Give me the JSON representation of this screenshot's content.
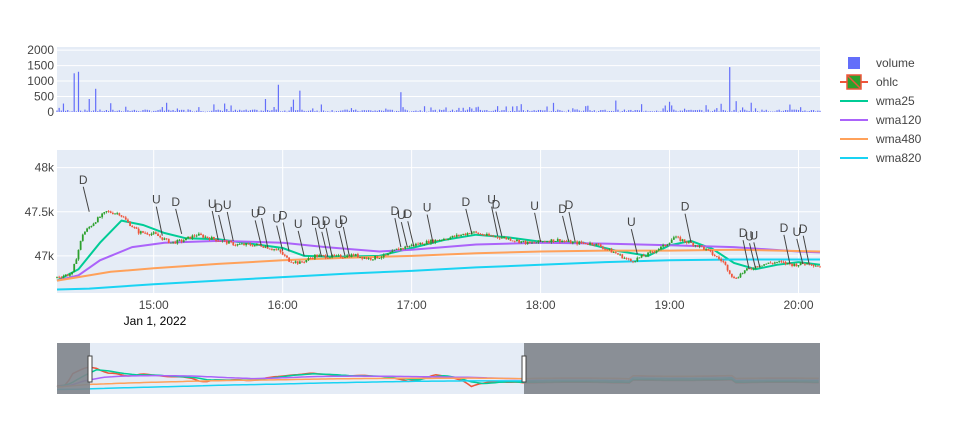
{
  "colors": {
    "plot_bg": "#e5ecf6",
    "grid": "#ffffff",
    "axis_text": "#444444",
    "volume": "#636efa",
    "up": "#2ca02c",
    "down": "#ef553b",
    "wma25": "#00cc96",
    "wma120": "#ab63fa",
    "wma480": "#ffa15a",
    "wma820": "#19d3f3",
    "slider_mask": "#7f858c"
  },
  "legend": [
    {
      "key": "volume",
      "label": "volume"
    },
    {
      "key": "ohlc",
      "label": "ohlc"
    },
    {
      "key": "wma25",
      "label": "wma25"
    },
    {
      "key": "wma120",
      "label": "wma120"
    },
    {
      "key": "wma480",
      "label": "wma480"
    },
    {
      "key": "wma820",
      "label": "wma820"
    }
  ],
  "chart_data": [
    {
      "type": "bar",
      "name": "volume",
      "x_range": [
        "14:15",
        "20:10"
      ],
      "ylim": [
        0,
        2100
      ],
      "y_ticks": [
        0,
        500,
        1000,
        1500,
        2000
      ],
      "y_tick_labels": [
        "0",
        "500",
        "1000",
        "1500",
        "2000"
      ],
      "spikes": [
        {
          "time": "14:23",
          "value": 1250
        },
        {
          "time": "14:25",
          "value": 1300
        },
        {
          "time": "14:30",
          "value": 420
        },
        {
          "time": "14:33",
          "value": 750
        },
        {
          "time": "15:52",
          "value": 420
        },
        {
          "time": "15:58",
          "value": 880
        },
        {
          "time": "16:05",
          "value": 400
        },
        {
          "time": "16:08",
          "value": 690
        },
        {
          "time": "16:55",
          "value": 640
        },
        {
          "time": "18:35",
          "value": 370
        },
        {
          "time": "19:00",
          "value": 330
        },
        {
          "time": "19:28",
          "value": 1450
        },
        {
          "time": "19:31",
          "value": 350
        },
        {
          "time": "19:38",
          "value": 300
        }
      ]
    },
    {
      "type": "candlestick",
      "name": "ohlc",
      "x_range": [
        "14:15",
        "20:10"
      ],
      "x_ticks": [
        "15:00",
        "16:00",
        "17:00",
        "18:00",
        "19:00",
        "20:00"
      ],
      "x_tick_labels": [
        "15:00",
        "16:00",
        "17:00",
        "18:00",
        "19:00",
        "20:00"
      ],
      "x_subtitle": "Jan 1, 2022",
      "ylim": [
        46580,
        48200
      ],
      "y_ticks": [
        47000,
        47500,
        48000
      ],
      "y_tick_labels": [
        "47k",
        "47.5k",
        "48k"
      ],
      "price_path": [
        [
          "14:15",
          46760
        ],
        [
          "14:22",
          46800
        ],
        [
          "14:27",
          47250
        ],
        [
          "14:33",
          47400
        ],
        [
          "14:38",
          47500
        ],
        [
          "14:44",
          47480
        ],
        [
          "14:48",
          47380
        ],
        [
          "14:53",
          47270
        ],
        [
          "15:00",
          47250
        ],
        [
          "15:08",
          47150
        ],
        [
          "15:13",
          47170
        ],
        [
          "15:20",
          47240
        ],
        [
          "15:30",
          47180
        ],
        [
          "15:38",
          47130
        ],
        [
          "15:50",
          47120
        ],
        [
          "15:58",
          47060
        ],
        [
          "16:03",
          46950
        ],
        [
          "16:08",
          46920
        ],
        [
          "16:15",
          47000
        ],
        [
          "16:25",
          46990
        ],
        [
          "16:33",
          47010
        ],
        [
          "16:40",
          46970
        ],
        [
          "16:48",
          47000
        ],
        [
          "16:53",
          47070
        ],
        [
          "17:00",
          47120
        ],
        [
          "17:10",
          47170
        ],
        [
          "17:20",
          47220
        ],
        [
          "17:28",
          47270
        ],
        [
          "17:35",
          47230
        ],
        [
          "17:42",
          47210
        ],
        [
          "17:48",
          47180
        ],
        [
          "17:55",
          47140
        ],
        [
          "18:02",
          47170
        ],
        [
          "18:08",
          47180
        ],
        [
          "18:15",
          47150
        ],
        [
          "18:25",
          47140
        ],
        [
          "18:35",
          47030
        ],
        [
          "18:42",
          46940
        ],
        [
          "18:50",
          47020
        ],
        [
          "18:58",
          47120
        ],
        [
          "19:02",
          47210
        ],
        [
          "19:08",
          47160
        ],
        [
          "19:15",
          47100
        ],
        [
          "19:20",
          47020
        ],
        [
          "19:25",
          46930
        ],
        [
          "19:30",
          46740
        ],
        [
          "19:35",
          46830
        ],
        [
          "19:42",
          46900
        ],
        [
          "19:50",
          46930
        ],
        [
          "19:58",
          46900
        ],
        [
          "20:05",
          46920
        ],
        [
          "20:10",
          46880
        ]
      ],
      "series": [
        {
          "name": "wma25",
          "points": [
            [
              "14:15",
              46720
            ],
            [
              "14:25",
              46850
            ],
            [
              "14:35",
              47150
            ],
            [
              "14:45",
              47400
            ],
            [
              "14:55",
              47350
            ],
            [
              "15:05",
              47260
            ],
            [
              "15:15",
              47200
            ],
            [
              "15:30",
              47190
            ],
            [
              "15:45",
              47140
            ],
            [
              "16:00",
              47090
            ],
            [
              "16:10",
              47000
            ],
            [
              "16:25",
              46990
            ],
            [
              "16:45",
              47000
            ],
            [
              "17:00",
              47090
            ],
            [
              "17:15",
              47180
            ],
            [
              "17:30",
              47240
            ],
            [
              "17:45",
              47210
            ],
            [
              "18:00",
              47160
            ],
            [
              "18:20",
              47150
            ],
            [
              "18:35",
              47060
            ],
            [
              "18:50",
              47000
            ],
            [
              "19:00",
              47120
            ],
            [
              "19:10",
              47170
            ],
            [
              "19:20",
              47080
            ],
            [
              "19:30",
              46920
            ],
            [
              "19:40",
              46850
            ],
            [
              "19:50",
              46900
            ],
            [
              "20:00",
              46930
            ],
            [
              "20:10",
              46900
            ]
          ]
        },
        {
          "name": "wma120",
          "points": [
            [
              "14:15",
              46720
            ],
            [
              "14:25",
              46780
            ],
            [
              "14:35",
              46950
            ],
            [
              "14:50",
              47100
            ],
            [
              "15:05",
              47150
            ],
            [
              "15:30",
              47170
            ],
            [
              "16:00",
              47150
            ],
            [
              "16:20",
              47100
            ],
            [
              "16:45",
              47050
            ],
            [
              "17:00",
              47070
            ],
            [
              "17:30",
              47130
            ],
            [
              "18:00",
              47150
            ],
            [
              "18:30",
              47140
            ],
            [
              "19:00",
              47120
            ],
            [
              "19:30",
              47100
            ],
            [
              "20:00",
              47050
            ],
            [
              "20:10",
              47040
            ]
          ]
        },
        {
          "name": "wma480",
          "points": [
            [
              "14:15",
              46720
            ],
            [
              "14:25",
              46760
            ],
            [
              "14:40",
              46820
            ],
            [
              "15:00",
              46860
            ],
            [
              "15:30",
              46910
            ],
            [
              "16:00",
              46950
            ],
            [
              "16:30",
              46980
            ],
            [
              "17:00",
              47000
            ],
            [
              "17:30",
              47030
            ],
            [
              "18:00",
              47050
            ],
            [
              "18:30",
              47060
            ],
            [
              "19:00",
              47060
            ],
            [
              "19:30",
              47070
            ],
            [
              "20:10",
              47050
            ]
          ]
        },
        {
          "name": "wma820",
          "points": [
            [
              "14:15",
              46620
            ],
            [
              "14:30",
              46630
            ],
            [
              "15:00",
              46680
            ],
            [
              "15:30",
              46720
            ],
            [
              "16:00",
              46760
            ],
            [
              "16:30",
              46800
            ],
            [
              "17:00",
              46830
            ],
            [
              "17:30",
              46870
            ],
            [
              "18:00",
              46900
            ],
            [
              "18:30",
              46930
            ],
            [
              "19:00",
              46950
            ],
            [
              "19:30",
              46960
            ],
            [
              "20:10",
              46960
            ]
          ]
        }
      ],
      "annotations": [
        {
          "time": "14:30",
          "price": 47500,
          "label": "D"
        },
        {
          "time": "15:04",
          "price": 47230,
          "label": "U"
        },
        {
          "time": "15:13",
          "price": 47250,
          "label": "D"
        },
        {
          "time": "15:30",
          "price": 47180,
          "label": "U"
        },
        {
          "time": "15:33",
          "price": 47180,
          "label": "D"
        },
        {
          "time": "15:37",
          "price": 47170,
          "label": "U"
        },
        {
          "time": "15:50",
          "price": 47120,
          "label": "U"
        },
        {
          "time": "15:53",
          "price": 47100,
          "label": "D"
        },
        {
          "time": "16:00",
          "price": 47060,
          "label": "U"
        },
        {
          "time": "16:03",
          "price": 47050,
          "label": "D"
        },
        {
          "time": "16:10",
          "price": 47000,
          "label": "U"
        },
        {
          "time": "16:18",
          "price": 46990,
          "label": "D"
        },
        {
          "time": "16:21",
          "price": 46990,
          "label": "U"
        },
        {
          "time": "16:23",
          "price": 46990,
          "label": "D"
        },
        {
          "time": "16:29",
          "price": 47000,
          "label": "U"
        },
        {
          "time": "16:31",
          "price": 47000,
          "label": "D"
        },
        {
          "time": "16:58",
          "price": 47100,
          "label": "U"
        },
        {
          "time": "16:55",
          "price": 47100,
          "label": "D"
        },
        {
          "time": "17:01",
          "price": 47110,
          "label": "D"
        },
        {
          "time": "17:10",
          "price": 47140,
          "label": "U"
        },
        {
          "time": "17:28",
          "price": 47250,
          "label": "D"
        },
        {
          "time": "17:40",
          "price": 47230,
          "label": "U"
        },
        {
          "time": "17:42",
          "price": 47220,
          "label": "D"
        },
        {
          "time": "18:00",
          "price": 47160,
          "label": "U"
        },
        {
          "time": "18:13",
          "price": 47170,
          "label": "D"
        },
        {
          "time": "18:16",
          "price": 47170,
          "label": "D"
        },
        {
          "time": "18:45",
          "price": 47020,
          "label": "U"
        },
        {
          "time": "19:10",
          "price": 47150,
          "label": "D"
        },
        {
          "time": "19:40",
          "price": 46860,
          "label": "U"
        },
        {
          "time": "19:37",
          "price": 46850,
          "label": "D"
        },
        {
          "time": "19:42",
          "price": 46870,
          "label": "U"
        },
        {
          "time": "19:56",
          "price": 46910,
          "label": "D"
        },
        {
          "time": "20:02",
          "price": 46910,
          "label": "U"
        },
        {
          "time": "20:05",
          "price": 46900,
          "label": "D"
        }
      ]
    },
    {
      "type": "range-slider",
      "full_range": [
        "14:15",
        "23:55"
      ],
      "selected_range": [
        "14:15",
        "20:10"
      ]
    }
  ]
}
